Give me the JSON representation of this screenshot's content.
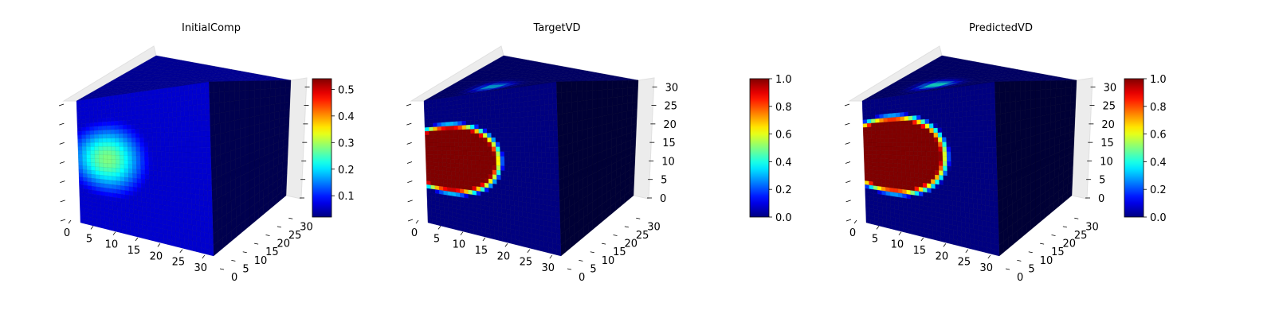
{
  "figure": {
    "background": "#ffffff"
  },
  "chart_data": [
    {
      "type": "heatmap",
      "title": "InitialComp",
      "xlabel": "",
      "ylabel": "",
      "zlabel": "",
      "x_ticks": [
        "0",
        "5",
        "10",
        "15",
        "20",
        "25",
        "30"
      ],
      "y_ticks": [
        "0",
        "5",
        "10",
        "15",
        "20",
        "25",
        "30"
      ],
      "z_ticks": [],
      "xlim": [
        0,
        32
      ],
      "ylim": [
        0,
        32
      ],
      "zlim": [
        0,
        32
      ],
      "colormap": "jet",
      "colorbar": {
        "min": 0.02,
        "max": 0.54,
        "ticks": [
          "0.1",
          "0.2",
          "0.3",
          "0.4",
          "0.5"
        ],
        "tick_values": [
          0.1,
          0.2,
          0.3,
          0.4,
          0.5
        ]
      },
      "front_face_blobs": [
        {
          "cx": 7,
          "cz": 17,
          "rx": 11,
          "rz": 10,
          "value": 0.28,
          "softness": "diffuse"
        }
      ],
      "background_value": 0.06
    },
    {
      "type": "heatmap",
      "title": "TargetVD",
      "xlabel": "",
      "ylabel": "",
      "zlabel": "",
      "x_ticks": [
        "0",
        "5",
        "10",
        "15",
        "20",
        "25",
        "30"
      ],
      "y_ticks": [
        "0",
        "5",
        "10",
        "15",
        "20",
        "25",
        "30"
      ],
      "z_ticks": [
        "0",
        "5",
        "10",
        "15",
        "20",
        "25",
        "30"
      ],
      "xlim": [
        0,
        32
      ],
      "ylim": [
        0,
        32
      ],
      "zlim": [
        0,
        32
      ],
      "colormap": "jet",
      "colorbar": {
        "min": 0.0,
        "max": 1.0,
        "ticks": [
          "0.0",
          "0.2",
          "0.4",
          "0.6",
          "0.8",
          "1.0"
        ],
        "tick_values": [
          0,
          0.2,
          0.4,
          0.6,
          0.8,
          1.0
        ]
      },
      "front_face_blobs": [
        {
          "cx": 6,
          "cz": 17,
          "rx": 13,
          "rz": 9,
          "value": 1.0,
          "softness": "sharp"
        }
      ],
      "top_face_features": [
        {
          "u": 12,
          "v": 8,
          "value": 0.35
        }
      ],
      "background_value": 0.0
    },
    {
      "type": "heatmap",
      "title": "PredictedVD",
      "xlabel": "",
      "ylabel": "",
      "zlabel": "",
      "x_ticks": [
        "0",
        "5",
        "10",
        "15",
        "20",
        "25",
        "30"
      ],
      "y_ticks": [
        "0",
        "5",
        "10",
        "15",
        "20",
        "25",
        "30"
      ],
      "z_ticks": [
        "0",
        "5",
        "10",
        "15",
        "20",
        "25",
        "30"
      ],
      "xlim": [
        0,
        32
      ],
      "ylim": [
        0,
        32
      ],
      "zlim": [
        0,
        32
      ],
      "colormap": "jet",
      "colorbar": {
        "min": 0.0,
        "max": 1.0,
        "ticks": [
          "0.0",
          "0.2",
          "0.4",
          "0.6",
          "0.8",
          "1.0"
        ],
        "tick_values": [
          0,
          0.2,
          0.4,
          0.6,
          0.8,
          1.0
        ]
      },
      "front_face_blobs": [
        {
          "cx": 7,
          "cz": 18,
          "rx": 14,
          "rz": 10,
          "value": 1.0,
          "softness": "sharp"
        }
      ],
      "top_face_features": [
        {
          "u": 12,
          "v": 10,
          "value": 0.45
        }
      ],
      "background_value": 0.0
    }
  ]
}
